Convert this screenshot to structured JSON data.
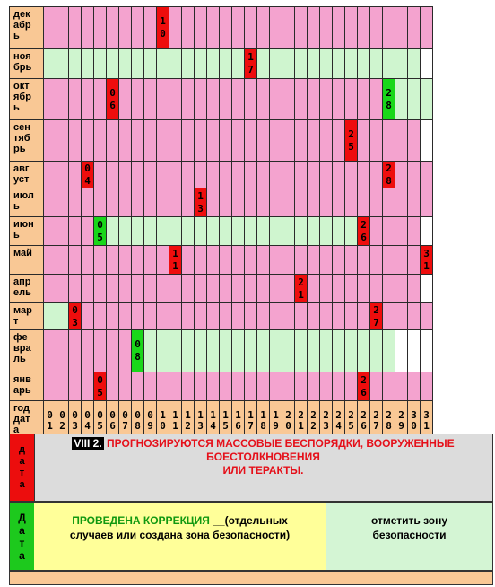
{
  "months": [
    {
      "label": "дек\nабр\nь",
      "green_from": null,
      "marks": [
        {
          "day": 10,
          "color": "red",
          "text": "1\n0"
        }
      ],
      "white_after": 31
    },
    {
      "label": "ноя\nбрь",
      "green_from": 1,
      "green_to": 30,
      "marks": [
        {
          "day": 17,
          "color": "red",
          "text": "1\n7"
        }
      ],
      "white_after": 30
    },
    {
      "label": "окт\nябр\nь",
      "green_from": 29,
      "green_to": 31,
      "marks": [
        {
          "day": 6,
          "color": "red",
          "text": "0\n6"
        },
        {
          "day": 28,
          "color": "green",
          "text": "2\n8"
        }
      ],
      "white_after": 31
    },
    {
      "label": "сен\nтяб\nрь",
      "green_from": null,
      "marks": [
        {
          "day": 25,
          "color": "red",
          "text": "2\n5"
        }
      ],
      "white_after": 30
    },
    {
      "label": "авг\nуст",
      "green_from": null,
      "marks": [
        {
          "day": 4,
          "color": "red",
          "text": "0\n4"
        },
        {
          "day": 28,
          "color": "red",
          "text": "2\n8"
        }
      ],
      "white_after": 31
    },
    {
      "label": "июл\nь",
      "green_from": null,
      "marks": [
        {
          "day": 13,
          "color": "red",
          "text": "1\n3"
        }
      ],
      "white_after": 31
    },
    {
      "label": "июн\nь",
      "green_from": 6,
      "green_to": 25,
      "marks": [
        {
          "day": 5,
          "color": "green",
          "text": "0\n5"
        },
        {
          "day": 26,
          "color": "red",
          "text": "2\n6"
        }
      ],
      "white_after": 30
    },
    {
      "label": "май",
      "green_from": null,
      "marks": [
        {
          "day": 11,
          "color": "red",
          "text": "1\n1"
        },
        {
          "day": 31,
          "color": "red",
          "text": "3\n1"
        }
      ],
      "white_after": 31
    },
    {
      "label": "апр\nель",
      "green_from": null,
      "marks": [
        {
          "day": 21,
          "color": "red",
          "text": "2\n1"
        }
      ],
      "white_after": 30
    },
    {
      "label": "мар\nт",
      "green_from": 1,
      "green_to": 2,
      "marks": [
        {
          "day": 3,
          "color": "red",
          "text": "0\n3"
        },
        {
          "day": 27,
          "color": "red",
          "text": "2\n7"
        }
      ],
      "white_after": 31
    },
    {
      "label": "фе\nвра\nль",
      "green_from": 9,
      "green_to": 28,
      "marks": [
        {
          "day": 8,
          "color": "green",
          "text": "0\n8"
        }
      ],
      "white_after": 28
    },
    {
      "label": "янв\nарь",
      "green_from": null,
      "marks": [
        {
          "day": 5,
          "color": "red",
          "text": "0\n5"
        },
        {
          "day": 26,
          "color": "red",
          "text": "2\n6"
        }
      ],
      "white_after": 31
    }
  ],
  "header": {
    "label": "год\nдат\nа",
    "days": [
      "0\n1",
      "0\n2",
      "0\n3",
      "0\n4",
      "0\n5",
      "0\n6",
      "0\n7",
      "0\n8",
      "0\n9",
      "1\n0",
      "1\n1",
      "1\n2",
      "1\n3",
      "1\n4",
      "1\n5",
      "1\n6",
      "1\n7",
      "1\n8",
      "1\n9",
      "2\n0",
      "2\n1",
      "2\n2",
      "2\n3",
      "2\n4",
      "2\n5",
      "2\n6",
      "2\n7",
      "2\n8",
      "2\n9",
      "3\n0",
      "3\n1"
    ]
  },
  "forecast": {
    "side_label": "д\nа\nт\nа",
    "badge": "VIII 2.",
    "text_line1": " ПРОГНОЗИРУЮТСЯ МАССОВЫЕ БЕСПОРЯДКИ, ВООРУЖЕННЫЕ",
    "text_line2": "БОЕСТОЛКНОВЕНИЯ",
    "text_line3": "ИЛИ ТЕРАКТЫ."
  },
  "correction": {
    "side_label": "Д\nа\nт\nа",
    "green_text": "ПРОВЕДЕНА КОРРЕКЦИЯ",
    "black_text": "  __(отдельных\nслучаев или создана зона безопасности)",
    "right_text": "отметить зону\nбезопасности"
  },
  "colors": {
    "pink": "#f4a3cf",
    "green": "#cff5cf",
    "mark_red": "#ee0d0d",
    "mark_green": "#19d719",
    "orange": "#f9c895"
  }
}
